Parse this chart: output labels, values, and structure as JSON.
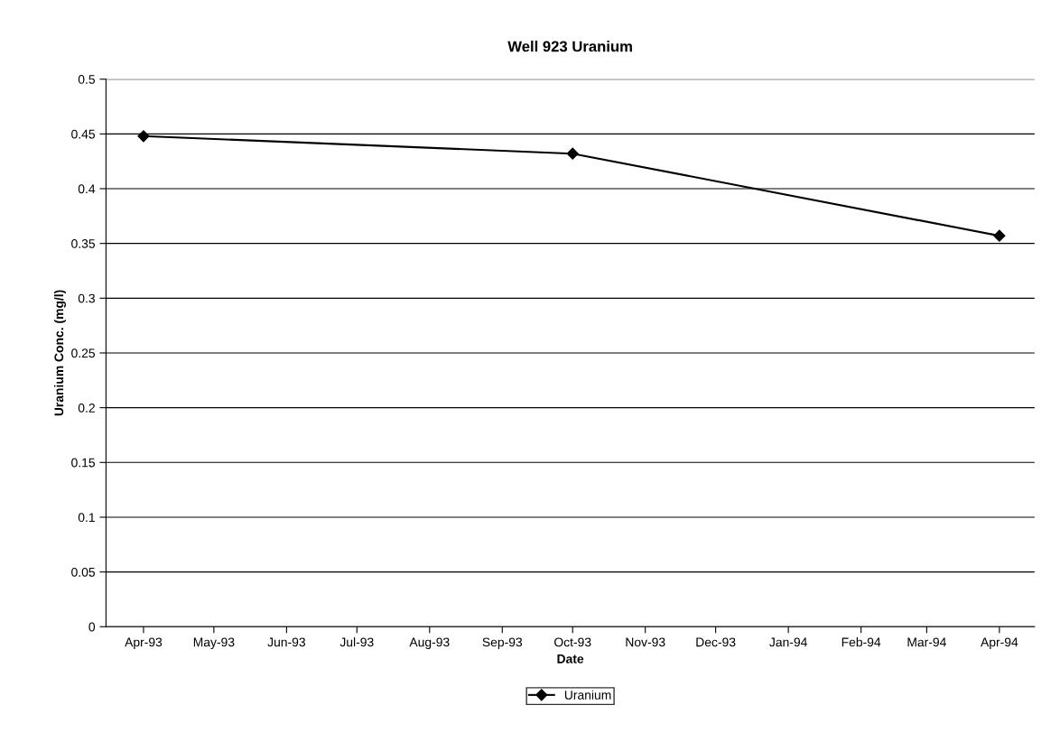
{
  "chart_data": {
    "type": "line",
    "title": "Well 923 Uranium",
    "xlabel": "Date",
    "ylabel": "Uranium Conc. (mg/l)",
    "x": [
      "1993-04-01",
      "1993-10-01",
      "1994-04-01"
    ],
    "series": [
      {
        "name": "Uranium",
        "color": "#000000",
        "values": [
          0.448,
          0.432,
          0.357
        ]
      }
    ],
    "xlim": [
      "1993-03-16",
      "1994-04-16"
    ],
    "xticks": [
      {
        "value": "1993-04-01",
        "label": "Apr-93"
      },
      {
        "value": "1993-05-01",
        "label": "May-93"
      },
      {
        "value": "1993-06-01",
        "label": "Jun-93"
      },
      {
        "value": "1993-07-01",
        "label": "Jul-93"
      },
      {
        "value": "1993-08-01",
        "label": "Aug-93"
      },
      {
        "value": "1993-09-01",
        "label": "Sep-93"
      },
      {
        "value": "1993-10-01",
        "label": "Oct-93"
      },
      {
        "value": "1993-11-01",
        "label": "Nov-93"
      },
      {
        "value": "1993-12-01",
        "label": "Dec-93"
      },
      {
        "value": "1994-01-01",
        "label": "Jan-94"
      },
      {
        "value": "1994-02-01",
        "label": "Feb-94"
      },
      {
        "value": "1994-03-01",
        "label": "Mar-94"
      },
      {
        "value": "1994-04-01",
        "label": "Apr-94"
      }
    ],
    "ylim": [
      0,
      0.5
    ],
    "yticks": [
      0,
      0.05,
      0.1,
      0.15,
      0.2,
      0.25,
      0.3,
      0.35,
      0.4,
      0.45,
      0.5
    ],
    "grid": "y",
    "legend": "bottom",
    "marker": "diamond",
    "line_style": "solid"
  }
}
